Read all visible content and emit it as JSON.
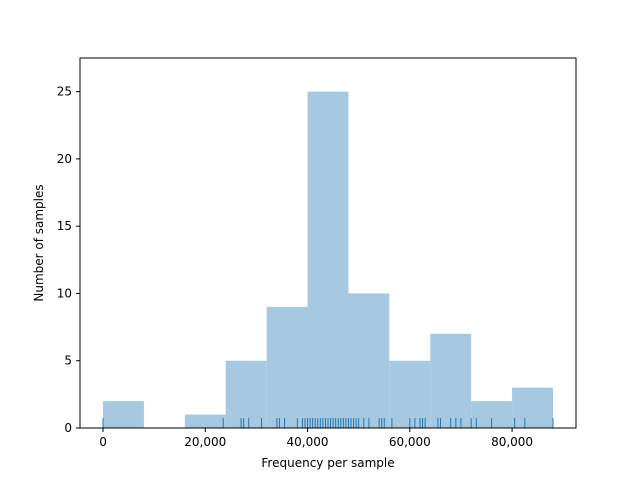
{
  "chart_data": {
    "type": "bar",
    "title": "",
    "xlabel": "Frequency per sample",
    "ylabel": "Number of samples",
    "xlim": [
      -4500,
      92500
    ],
    "ylim": [
      0,
      27.5
    ],
    "grid": false,
    "bar_color": "#a6c8e0",
    "rug_color": "#1f77b4",
    "x_ticks": [
      {
        "value": 0,
        "label": "0"
      },
      {
        "value": 20000,
        "label": "20,000"
      },
      {
        "value": 40000,
        "label": "40,000"
      },
      {
        "value": 60000,
        "label": "60,000"
      },
      {
        "value": 80000,
        "label": "80,000"
      }
    ],
    "y_ticks": [
      {
        "value": 0,
        "label": "0"
      },
      {
        "value": 5,
        "label": "5"
      },
      {
        "value": 10,
        "label": "10"
      },
      {
        "value": 15,
        "label": "15"
      },
      {
        "value": 20,
        "label": "20"
      },
      {
        "value": 25,
        "label": "25"
      }
    ],
    "bins": [
      {
        "x0": 0,
        "x1": 8000,
        "count": 2
      },
      {
        "x0": 8000,
        "x1": 16000,
        "count": 0
      },
      {
        "x0": 16000,
        "x1": 24000,
        "count": 1
      },
      {
        "x0": 24000,
        "x1": 32000,
        "count": 5
      },
      {
        "x0": 32000,
        "x1": 40000,
        "count": 9
      },
      {
        "x0": 40000,
        "x1": 48000,
        "count": 25
      },
      {
        "x0": 48000,
        "x1": 56000,
        "count": 10
      },
      {
        "x0": 56000,
        "x1": 64000,
        "count": 5
      },
      {
        "x0": 64000,
        "x1": 72000,
        "count": 7
      },
      {
        "x0": 72000,
        "x1": 80000,
        "count": 2
      },
      {
        "x0": 80000,
        "x1": 88000,
        "count": 3
      }
    ],
    "rug_values": [
      0,
      23500,
      27000,
      27500,
      28500,
      31000,
      34000,
      34500,
      35500,
      38000,
      39000,
      39500,
      40000,
      40500,
      41000,
      41500,
      42000,
      42500,
      43000,
      43500,
      44000,
      44500,
      45000,
      45500,
      46000,
      46500,
      47000,
      47500,
      48000,
      48500,
      49000,
      49500,
      50000,
      51000,
      52000,
      54000,
      54500,
      55000,
      56500,
      60000,
      61000,
      62000,
      62500,
      63000,
      65500,
      66000,
      68000,
      69000,
      70000,
      72000,
      73000,
      76000,
      80500,
      82500,
      88000
    ]
  }
}
